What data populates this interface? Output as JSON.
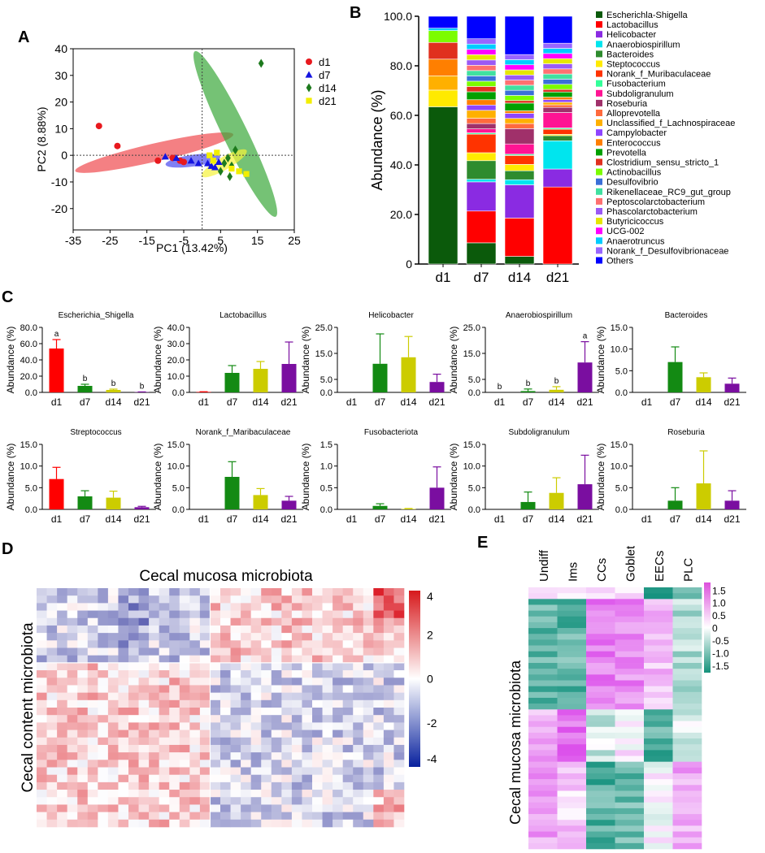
{
  "panels": {
    "A": {
      "letter": "A"
    },
    "B": {
      "letter": "B"
    },
    "C": {
      "letter": "C"
    },
    "D": {
      "letter": "D"
    },
    "E": {
      "letter": "E"
    }
  },
  "colors": {
    "d1": "#e8191e",
    "d7": "#1414e0",
    "d14": "#1d7a1d",
    "d21": "#f2ee00",
    "bar_d1": "#ff0000",
    "bar_d7": "#138a13",
    "bar_d14": "#cccc00",
    "bar_d21": "#7a0ea0"
  },
  "chart_data": [
    {
      "id": "A",
      "type": "scatter",
      "xlabel": "PC1 (13.42%)",
      "ylabel": "PC2 (8.88%)",
      "xlim": [
        -35,
        25
      ],
      "ylim": [
        -28,
        40
      ],
      "xticks": [
        "-35",
        "-25",
        "-15",
        "-5",
        "5",
        "15",
        "25"
      ],
      "yticks": [
        "40",
        "30",
        "20",
        "10",
        "0",
        "-10",
        "-20"
      ],
      "legend": [
        "d1",
        "d7",
        "d14",
        "d21"
      ],
      "series": [
        {
          "name": "d1",
          "points": [
            [
              -28,
              11
            ],
            [
              -23,
              3.5
            ],
            [
              -12,
              -2
            ],
            [
              -8,
              -1
            ],
            [
              -6,
              -2
            ],
            [
              -5,
              -2.5
            ]
          ]
        },
        {
          "name": "d7",
          "points": [
            [
              -10,
              -0.5
            ],
            [
              -7,
              -1
            ],
            [
              -3,
              -2
            ],
            [
              -1,
              -3
            ],
            [
              1.5,
              -3
            ],
            [
              2.5,
              -4
            ],
            [
              3.5,
              -4.5
            ],
            [
              4.5,
              -2.5
            ]
          ]
        },
        {
          "name": "d14",
          "points": [
            [
              16,
              34.5
            ],
            [
              9,
              2
            ],
            [
              7,
              -1
            ],
            [
              6,
              -3
            ],
            [
              8,
              -4
            ],
            [
              5,
              -6
            ],
            [
              7.5,
              -8
            ]
          ]
        },
        {
          "name": "d21",
          "points": [
            [
              2,
              0
            ],
            [
              4,
              1
            ],
            [
              3,
              -2
            ],
            [
              8,
              -5
            ],
            [
              10,
              -6
            ],
            [
              12,
              -7
            ]
          ]
        }
      ],
      "ellipses": [
        {
          "name": "d1",
          "cx": -13,
          "cy": 1,
          "rx": 22,
          "ry": 3.4,
          "angle_deg": -13
        },
        {
          "name": "d7",
          "cx": -2.5,
          "cy": -2,
          "rx": 7.5,
          "ry": 2.2,
          "angle_deg": -8
        },
        {
          "name": "d14",
          "cx": 9,
          "cy": 8,
          "rx": 25,
          "ry": 4.6,
          "angle_deg": 64
        },
        {
          "name": "d21",
          "cx": 6,
          "cy": -3,
          "rx": 7,
          "ry": 2.4,
          "angle_deg": -30
        }
      ]
    },
    {
      "id": "B",
      "type": "bar",
      "stacked": true,
      "ylabel": "Abundance (%)",
      "yticks": [
        "0",
        "20.0",
        "40.0",
        "60.0",
        "80.0",
        "100.0"
      ],
      "categories": [
        "d1",
        "d7",
        "d14",
        "d21"
      ],
      "series": [
        {
          "name": "Escherichla-Shigella",
          "color": "#0b5a0b",
          "values": [
            66,
            8,
            3,
            0
          ]
        },
        {
          "name": "Lactobacillus",
          "color": "#ff0000",
          "values": [
            0,
            12,
            15,
            30
          ]
        },
        {
          "name": "Helicobacter",
          "color": "#8a2be2",
          "values": [
            0,
            11,
            13,
            7
          ]
        },
        {
          "name": "Anaerobiospirillum",
          "color": "#00e5ee",
          "values": [
            0,
            1,
            2,
            11
          ]
        },
        {
          "name": "Bacteroides",
          "color": "#2e8b2e",
          "values": [
            0,
            7,
            3.5,
            2
          ]
        },
        {
          "name": "Steptococcus",
          "color": "#ffea00",
          "values": [
            7,
            3,
            2.5,
            0.5
          ]
        },
        {
          "name": "Norank_f_Muribaculaceae",
          "color": "#ff3300",
          "values": [
            0,
            7,
            3.5,
            2
          ]
        },
        {
          "name": "Fusobacterium",
          "color": "#33ff99",
          "values": [
            0,
            0.5,
            0.5,
            0.5
          ]
        },
        {
          "name": "Subdoligranulum",
          "color": "#ff1493",
          "values": [
            0,
            1.5,
            4,
            6
          ]
        },
        {
          "name": "Roseburia",
          "color": "#a0306a",
          "values": [
            0,
            2,
            6,
            2
          ]
        },
        {
          "name": "Alloprevotella",
          "color": "#ff6a3d",
          "values": [
            0,
            2,
            2,
            1
          ]
        },
        {
          "name": "Unclassified_f_Lachnospiraceae",
          "color": "#ffb000",
          "values": [
            6,
            3,
            2,
            1
          ]
        },
        {
          "name": "Campylobacter",
          "color": "#8e44ff",
          "values": [
            0,
            2,
            2,
            1
          ]
        },
        {
          "name": "Enterococcus",
          "color": "#ff7f00",
          "values": [
            7,
            2,
            1,
            1
          ]
        },
        {
          "name": "Prevotella",
          "color": "#00a000",
          "values": [
            0,
            3,
            3,
            2
          ]
        },
        {
          "name": "Clostridium_sensu_stricto_1",
          "color": "#e0301e",
          "values": [
            7,
            2,
            1,
            1
          ]
        },
        {
          "name": "Actinobacillus",
          "color": "#7cfc00",
          "values": [
            5,
            2,
            2,
            2
          ]
        },
        {
          "name": "Desulfovibrio",
          "color": "#3a6fd8",
          "values": [
            0,
            2,
            2,
            2
          ]
        },
        {
          "name": "Rikenellaceae_RC9_gut_group",
          "color": "#40e0a0",
          "values": [
            0,
            2,
            2,
            2
          ]
        },
        {
          "name": "Peptoscolarctobacterium",
          "color": "#ff7070",
          "values": [
            0,
            2,
            2,
            2
          ]
        },
        {
          "name": "Phascolarctobacterium",
          "color": "#9b59f5",
          "values": [
            0,
            2,
            2,
            2
          ]
        },
        {
          "name": "Butyricicoccus",
          "color": "#e6e600",
          "values": [
            0,
            2,
            2,
            2
          ]
        },
        {
          "name": "UCG-002",
          "color": "#ff00ff",
          "values": [
            0,
            2,
            2,
            2
          ]
        },
        {
          "name": "Anaerotruncus",
          "color": "#00ccff",
          "values": [
            1,
            2,
            2,
            2
          ]
        },
        {
          "name": "Norank_f_Desulfovibrionaceae",
          "color": "#9966ff",
          "values": [
            0,
            2,
            2,
            2
          ]
        },
        {
          "name": "Others",
          "color": "#0000ff",
          "values": [
            5,
            8.5,
            15,
            10.5
          ]
        }
      ]
    },
    {
      "id": "C",
      "type": "bar",
      "ylabel": "Abundance (%)",
      "categories": [
        "d1",
        "d7",
        "d14",
        "d21"
      ],
      "subplots": [
        {
          "title": "Escherichia_Shigella",
          "ylim": [
            0,
            80
          ],
          "yticks": [
            "80.0",
            "60.0",
            "40.0",
            "20.0",
            "0.0"
          ],
          "tick_values": [
            80,
            60,
            40,
            20,
            0
          ],
          "values": [
            54,
            8,
            3,
            0.4
          ],
          "errors": [
            11,
            2,
            1,
            0.2
          ],
          "letters": [
            "a",
            "b",
            "b",
            "b"
          ]
        },
        {
          "title": "Lactobacillus",
          "ylim": [
            0,
            40
          ],
          "yticks": [
            "40.0",
            "30.0",
            "20.0",
            "10.0",
            "0.0"
          ],
          "tick_values": [
            40,
            30,
            20,
            10,
            0
          ],
          "values": [
            0.3,
            12,
            14.5,
            17.5
          ],
          "errors": [
            0.1,
            4.5,
            4.5,
            13.5
          ],
          "letters": [
            "",
            "",
            "",
            ""
          ]
        },
        {
          "title": "Helicobacter",
          "ylim": [
            0,
            25
          ],
          "yticks": [
            "25.0",
            "15.0",
            "5.0",
            "0.0"
          ],
          "tick_values": [
            25,
            15,
            5,
            0
          ],
          "values": [
            0,
            11,
            13.5,
            4
          ],
          "errors": [
            0,
            11.5,
            8,
            3
          ],
          "letters": [
            "",
            "",
            "",
            ""
          ]
        },
        {
          "title": "Anaerobiospirillum",
          "ylim": [
            0,
            25
          ],
          "yticks": [
            "25.0",
            "15.0",
            "5.0",
            "0.0"
          ],
          "tick_values": [
            25,
            15,
            5,
            0
          ],
          "values": [
            0,
            0.5,
            1,
            11.5
          ],
          "errors": [
            0,
            0.8,
            1.2,
            8
          ],
          "letters": [
            "b",
            "b",
            "b",
            "a"
          ]
        },
        {
          "title": "Bacteroides",
          "ylim": [
            0,
            15
          ],
          "yticks": [
            "15.0",
            "10.0",
            "5.0",
            "0.0"
          ],
          "tick_values": [
            15,
            10,
            5,
            0
          ],
          "values": [
            0,
            7,
            3.5,
            2
          ],
          "errors": [
            0,
            3.5,
            1,
            1.3
          ],
          "letters": [
            "",
            "",
            "",
            ""
          ]
        },
        {
          "title": "Streptococcus",
          "ylim": [
            0,
            15
          ],
          "yticks": [
            "15.0",
            "10.0",
            "5.0",
            "0.0"
          ],
          "tick_values": [
            15,
            10,
            5,
            0
          ],
          "values": [
            7,
            3,
            2.7,
            0.5
          ],
          "errors": [
            2.7,
            1.3,
            1.5,
            0.2
          ],
          "letters": [
            "",
            "",
            "",
            ""
          ]
        },
        {
          "title": "Norank_f_Maribaculaceae",
          "ylim": [
            0,
            15
          ],
          "yticks": [
            "15.0",
            "10.0",
            "5.0",
            "0.0"
          ],
          "tick_values": [
            15,
            10,
            5,
            0
          ],
          "values": [
            0,
            7.5,
            3.3,
            2
          ],
          "errors": [
            0,
            3.5,
            1.5,
            1
          ],
          "letters": [
            "",
            "",
            "",
            ""
          ]
        },
        {
          "title": "Fusobacteriota",
          "ylim": [
            0,
            1.5
          ],
          "yticks": [
            "1.5",
            "1.0",
            "0.5",
            "0.0"
          ],
          "tick_values": [
            1.5,
            1.0,
            0.5,
            0
          ],
          "values": [
            0,
            0.08,
            0.01,
            0.5
          ],
          "errors": [
            0,
            0.05,
            0.01,
            0.48
          ],
          "letters": [
            "",
            "",
            "",
            ""
          ]
        },
        {
          "title": "Subdoligranulum",
          "ylim": [
            0,
            15
          ],
          "yticks": [
            "15.0",
            "10.0",
            "5.0",
            "0.0"
          ],
          "tick_values": [
            15,
            10,
            5,
            0
          ],
          "values": [
            0,
            1.7,
            3.8,
            5.8
          ],
          "errors": [
            0,
            2.3,
            3.5,
            6.7
          ],
          "letters": [
            "",
            "",
            "",
            ""
          ]
        },
        {
          "title": "Roseburia",
          "ylim": [
            0,
            15
          ],
          "yticks": [
            "15.0",
            "10.0",
            "5.0",
            "0.0"
          ],
          "tick_values": [
            15,
            10,
            5,
            0
          ],
          "values": [
            0,
            2,
            6,
            2
          ],
          "errors": [
            0,
            3,
            7.5,
            2.3
          ],
          "letters": [
            "",
            "",
            "",
            ""
          ]
        }
      ]
    },
    {
      "id": "D",
      "type": "heatmap",
      "title": "Cecal mucosa microbiota",
      "ylabel": "Cecal content microbiota",
      "colorbar_ticks": [
        "4",
        "2",
        "0",
        "-2",
        "-4"
      ],
      "colorbar_values": [
        4,
        2,
        0,
        -2,
        -4
      ],
      "range": [
        -4,
        4
      ]
    },
    {
      "id": "E",
      "type": "heatmap",
      "ylabel": "Cecal mucosa microbiota",
      "columns": [
        "Undiff",
        "Ims",
        "CCs",
        "Goblet",
        "EECs",
        "PLC"
      ],
      "colorbar_ticks": [
        "1.5",
        "1.0",
        "0.5",
        "0",
        "-0.5",
        "-1.0",
        "-1.5"
      ],
      "colorbar_values": [
        1.5,
        1.0,
        0.5,
        0,
        -0.5,
        -1.0,
        -1.5
      ],
      "range": [
        -1.8,
        1.8
      ]
    }
  ]
}
